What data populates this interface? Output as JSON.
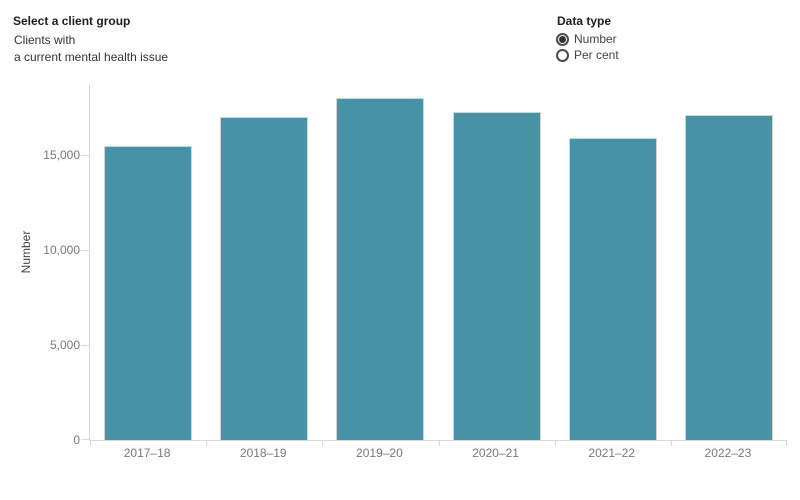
{
  "header": {
    "client_group_label": "Select a client group",
    "client_group_value_line1": "Clients with",
    "client_group_value_line2": "a current mental health issue",
    "data_type_label": "Data type",
    "radios": [
      {
        "label": "Number",
        "selected": true
      },
      {
        "label": "Per cent",
        "selected": false
      }
    ]
  },
  "chart_data": {
    "type": "bar",
    "title": "",
    "categories": [
      "2017–18",
      "2018–19",
      "2019–20",
      "2020–21",
      "2021–22",
      "2022–23"
    ],
    "values": [
      15500,
      17000,
      18000,
      17300,
      15900,
      17100
    ],
    "xlabel": "",
    "ylabel": "Number",
    "ylim": [
      0,
      18700
    ],
    "yticks": [
      0,
      5000,
      10000,
      15000
    ],
    "ytick_labels": [
      "0",
      "5,000",
      "10,000",
      "15,000"
    ],
    "grid": false,
    "legend": "none",
    "bar_color": "#4892a6",
    "bar_border_color": "#d4d4d4",
    "axis_line_color": "#d7d7d7"
  }
}
